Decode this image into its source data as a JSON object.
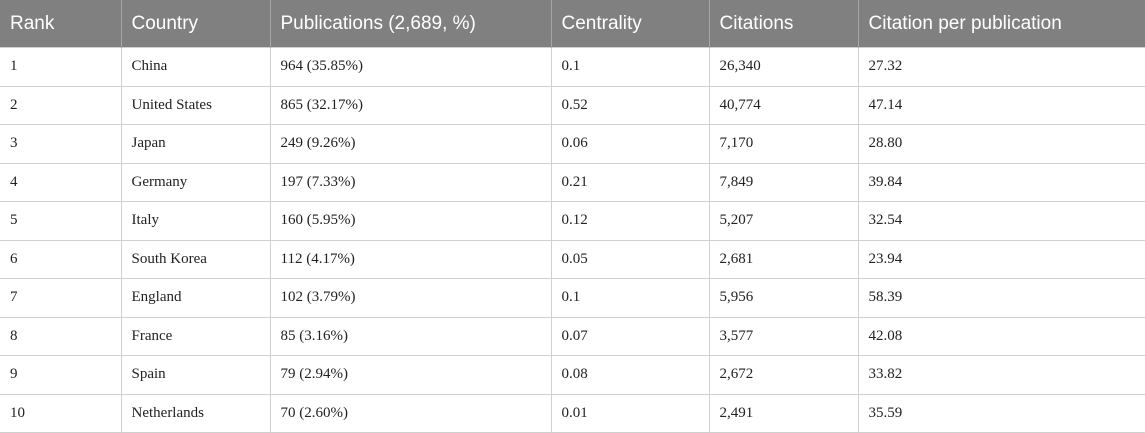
{
  "table": {
    "header": [
      "Rank",
      "Country",
      "Publications (2,689, %)",
      "Centrality",
      "Citations",
      "Citation per publication"
    ],
    "rows": [
      [
        "1",
        "China",
        "964 (35.85%)",
        "0.1",
        "26,340",
        "27.32"
      ],
      [
        "2",
        "United States",
        "865 (32.17%)",
        "0.52",
        "40,774",
        "47.14"
      ],
      [
        "3",
        "Japan",
        "249 (9.26%)",
        "0.06",
        "7,170",
        "28.80"
      ],
      [
        "4",
        "Germany",
        "197 (7.33%)",
        "0.21",
        "7,849",
        "39.84"
      ],
      [
        "5",
        "Italy",
        "160 (5.95%)",
        "0.12",
        "5,207",
        "32.54"
      ],
      [
        "6",
        "South Korea",
        "112 (4.17%)",
        "0.05",
        "2,681",
        "23.94"
      ],
      [
        "7",
        "England",
        "102 (3.79%)",
        "0.1",
        "5,956",
        "58.39"
      ],
      [
        "8",
        "France",
        "85 (3.16%)",
        "0.07",
        "3,577",
        "42.08"
      ],
      [
        "9",
        "Spain",
        "79 (2.94%)",
        "0.08",
        "2,672",
        "33.82"
      ],
      [
        "10",
        "Netherlands",
        "70 (2.60%)",
        "0.01",
        "2,491",
        "35.59"
      ]
    ]
  }
}
